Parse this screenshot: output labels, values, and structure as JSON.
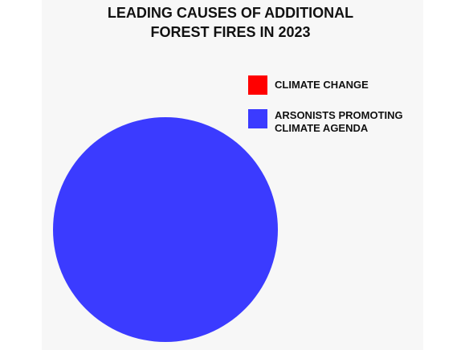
{
  "chart_data": {
    "type": "pie",
    "title": "LEADING CAUSES OF ADDITIONAL FOREST FIRES IN 2023",
    "categories": [
      "CLIMATE CHANGE",
      "ARSONISTS PROMOTING CLIMATE AGENDA"
    ],
    "values": [
      0,
      100
    ],
    "colors": [
      "#ff0000",
      "#3b3bff"
    ]
  }
}
